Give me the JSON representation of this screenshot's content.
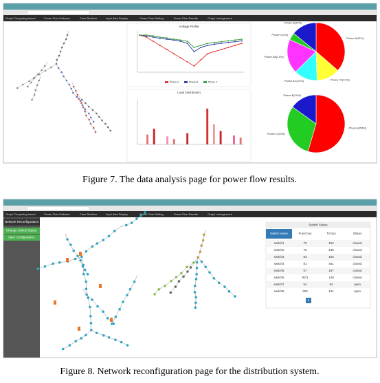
{
  "figure7": {
    "caption": "Figure 7. The data analysis page for power flow results.",
    "menu": [
      "Graph Computing based",
      "Power Flow Software",
      "Case Retrieve",
      "Input data Display",
      "Power Flow Setting",
      "Power Flow Results",
      "Graph management"
    ],
    "voltage_chart": {
      "type": "line",
      "title": "Voltage Profile",
      "ylim": [
        0.9,
        1.0
      ],
      "series": [
        {
          "name": "Phase A",
          "color": "#e53935",
          "values": [
            0.99,
            0.985,
            0.975,
            0.965,
            0.955,
            0.945,
            0.935,
            0.925,
            0.915,
            0.93,
            0.945,
            0.95,
            0.955,
            0.96,
            0.965,
            0.97
          ]
        },
        {
          "name": "Phase B",
          "color": "#3949ab",
          "values": [
            0.99,
            0.988,
            0.985,
            0.982,
            0.98,
            0.978,
            0.975,
            0.97,
            0.95,
            0.96,
            0.965,
            0.968,
            0.97,
            0.972,
            0.974,
            0.976
          ]
        },
        {
          "name": "Phase C",
          "color": "#43a047",
          "values": [
            0.99,
            0.99,
            0.988,
            0.985,
            0.983,
            0.98,
            0.978,
            0.975,
            0.96,
            0.965,
            0.97,
            0.972,
            0.974,
            0.976,
            0.978,
            0.98
          ]
        }
      ]
    },
    "load_chart": {
      "type": "bar",
      "title": "Load Distribution",
      "ylim": [
        0,
        100
      ],
      "values": [
        0,
        22,
        35,
        0,
        18,
        12,
        0,
        25,
        0,
        0,
        80,
        45,
        30,
        0,
        20,
        15
      ],
      "colors": [
        "#e57373",
        "#e57373",
        "#c62828",
        "#e57373",
        "#f48fb1",
        "#e57373",
        "#e57373",
        "#c62828",
        "#e57373",
        "#e57373",
        "#d32f2f",
        "#ef9a9a",
        "#c62828",
        "#e57373",
        "#f06292",
        "#e57373"
      ]
    },
    "pies": [
      {
        "type": "pie",
        "slices": [
          {
            "label": "Phase A(36%)",
            "value": 36,
            "color": "#ff0000"
          },
          {
            "label": "Phase C0(13%)",
            "value": 13,
            "color": "#ffff33"
          },
          {
            "label": "Phase AC(13%)",
            "value": 13,
            "color": "#33ffff"
          },
          {
            "label": "Phase AB(19%)",
            "value": 19,
            "color": "#ff33ff"
          },
          {
            "label": "Phase C(4%)",
            "value": 4,
            "color": "#22cc22"
          },
          {
            "label": "Phase B(14%)",
            "value": 14,
            "color": "#1a1acc"
          }
        ]
      },
      {
        "type": "pie",
        "slices": [
          {
            "label": "Phase A(54%)",
            "value": 54,
            "color": "#ff0000"
          },
          {
            "label": "Phase C(30%)",
            "value": 30,
            "color": "#22cc22"
          },
          {
            "label": "Phase B(15%)",
            "value": 15,
            "color": "#1a1acc"
          }
        ]
      }
    ]
  },
  "figure8": {
    "caption": "Figure 8. Network reconfiguration page for the distribution system.",
    "menu": [
      "Graph Computing based",
      "Power Flow Software",
      "Case Retrieve",
      "Input data Display",
      "Power Flow Setting",
      "Power Flow Results",
      "Graph management"
    ],
    "sidebar": {
      "title": "Network Reconfiguration",
      "buttons": [
        "Change Switch Status",
        "Save Configuration"
      ]
    },
    "table": {
      "title": "Switch Status",
      "columns": [
        "Switch name",
        "From bus",
        "To bus",
        "Status"
      ],
      "rows": [
        [
          "switch1",
          "70",
          "152",
          "closed"
        ],
        [
          "switch2",
          "76",
          "135",
          "closed"
        ],
        [
          "switch3",
          "83",
          "160",
          "closed"
        ],
        [
          "switch4",
          "81",
          "451",
          "closed"
        ],
        [
          "switch5",
          "57",
          "197",
          "closed"
        ],
        [
          "switch6",
          "RG1",
          "149",
          "closed"
        ],
        [
          "switch7",
          "54",
          "94",
          "open"
        ],
        [
          "switch8",
          "303",
          "151",
          "open"
        ]
      ],
      "page": "1"
    }
  }
}
